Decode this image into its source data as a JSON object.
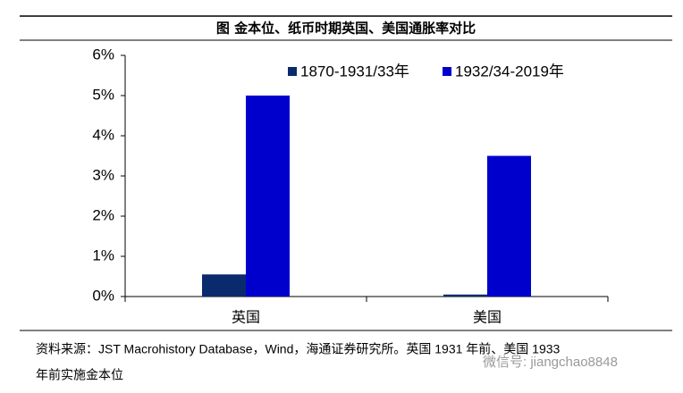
{
  "chart_data": {
    "type": "bar",
    "title": "图  金本位、纸币时期英国、美国通胀率对比",
    "categories": [
      "英国",
      "美国"
    ],
    "series": [
      {
        "name": "1870-1931/33年",
        "color": "#0a2a6e",
        "values": [
          0.55,
          0.05
        ]
      },
      {
        "name": "1932/34-2019年",
        "color": "#0000cc",
        "values": [
          5.0,
          3.5
        ]
      }
    ],
    "ylim": [
      0,
      6
    ],
    "yticks": [
      {
        "value": 0,
        "label": "0%"
      },
      {
        "value": 1,
        "label": "1%"
      },
      {
        "value": 2,
        "label": "2%"
      },
      {
        "value": 3,
        "label": "3%"
      },
      {
        "value": 4,
        "label": "4%"
      },
      {
        "value": 5,
        "label": "5%"
      },
      {
        "value": 6,
        "label": "6%"
      }
    ],
    "legend": "top-right",
    "source": [
      "资料来源：JST Macrohistory Database，Wind，海通证券研究所。英国 1931 年前、美国 1933",
      "年前实施金本位"
    ],
    "watermark": "微信号: jiangchao8848"
  }
}
